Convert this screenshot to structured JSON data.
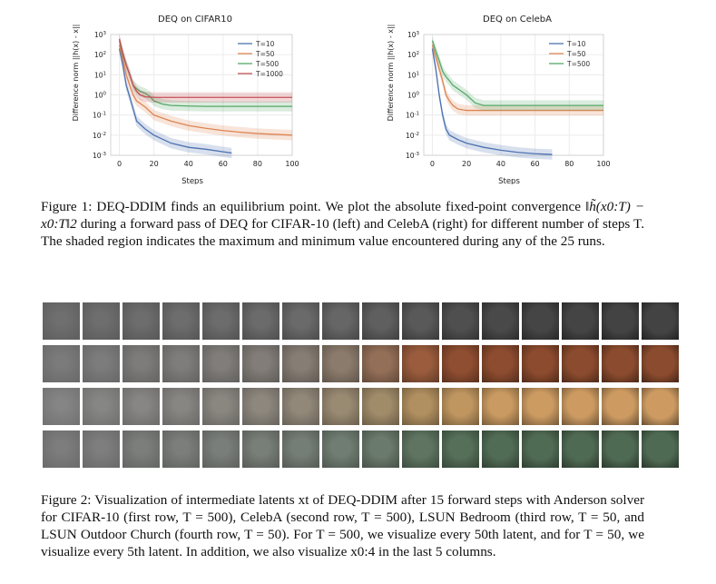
{
  "charts": {
    "left": {
      "title": "DEQ on CIFAR10",
      "xlabel": "Steps",
      "ylabel": "Difference norm ||h(x) - x||",
      "xticks": [
        "0",
        "20",
        "40",
        "60",
        "80",
        "100"
      ],
      "legend": [
        "T=10",
        "T=50",
        "T=500",
        "T=1000"
      ]
    },
    "right": {
      "title": "DEQ on CelebA",
      "xlabel": "Steps",
      "ylabel": "Difference norm ||h(x) - x||",
      "xticks": [
        "0",
        "20",
        "40",
        "60",
        "80",
        "100"
      ],
      "legend": [
        "T=10",
        "T=50",
        "T=500"
      ]
    }
  },
  "chart_data": [
    {
      "type": "line",
      "title": "DEQ on CIFAR10",
      "xlabel": "Steps",
      "ylabel": "Difference norm ||h(x) - x||",
      "yscale": "log",
      "xlim": [
        -5,
        100
      ],
      "ylim": [
        0.001,
        1000
      ],
      "legend_position": "top-right",
      "series": [
        {
          "name": "T=10",
          "color": "#4c72b0",
          "x": [
            0,
            2,
            4,
            6,
            8,
            10,
            15,
            20,
            30,
            40,
            50,
            60,
            65
          ],
          "y": [
            200,
            30,
            3,
            0.8,
            0.2,
            0.05,
            0.02,
            0.01,
            0.004,
            0.0025,
            0.002,
            0.0015,
            0.0013
          ]
        },
        {
          "name": "T=50",
          "color": "#dd8452",
          "x": [
            0,
            2,
            4,
            6,
            8,
            10,
            15,
            20,
            30,
            40,
            50,
            60,
            70,
            80,
            90,
            100
          ],
          "y": [
            300,
            60,
            10,
            3,
            1,
            0.5,
            0.25,
            0.1,
            0.05,
            0.03,
            0.022,
            0.017,
            0.014,
            0.012,
            0.011,
            0.01
          ]
        },
        {
          "name": "T=500",
          "color": "#55a868",
          "x": [
            0,
            2,
            4,
            6,
            8,
            10,
            12,
            15,
            18,
            20,
            25,
            30,
            40,
            50,
            60,
            70,
            80,
            90,
            100
          ],
          "y": [
            500,
            100,
            30,
            10,
            3,
            2,
            1.5,
            1.2,
            0.8,
            0.5,
            0.35,
            0.3,
            0.28,
            0.27,
            0.27,
            0.27,
            0.27,
            0.27,
            0.27
          ]
        },
        {
          "name": "T=1000",
          "color": "#c44e52",
          "x": [
            0,
            2,
            4,
            6,
            8,
            10,
            12,
            15,
            20,
            30,
            40,
            60,
            80,
            100
          ],
          "y": [
            600,
            120,
            30,
            10,
            3,
            1.5,
            1,
            0.8,
            0.75,
            0.75,
            0.75,
            0.75,
            0.75,
            0.75
          ]
        }
      ]
    },
    {
      "type": "line",
      "title": "DEQ on CelebA",
      "xlabel": "Steps",
      "ylabel": "Difference norm ||h(x) - x||",
      "yscale": "log",
      "xlim": [
        -5,
        100
      ],
      "ylim": [
        0.001,
        1000
      ],
      "legend_position": "top-right",
      "series": [
        {
          "name": "T=10",
          "color": "#4c72b0",
          "x": [
            0,
            2,
            4,
            6,
            8,
            10,
            15,
            20,
            30,
            40,
            50,
            60,
            70
          ],
          "y": [
            200,
            20,
            1,
            0.1,
            0.02,
            0.01,
            0.006,
            0.004,
            0.0025,
            0.0018,
            0.0014,
            0.0012,
            0.0011
          ]
        },
        {
          "name": "T=50",
          "color": "#dd8452",
          "x": [
            0,
            2,
            4,
            6,
            8,
            10,
            12,
            15,
            18,
            20,
            30,
            40,
            60,
            80,
            100
          ],
          "y": [
            300,
            80,
            20,
            5,
            1,
            0.5,
            0.3,
            0.2,
            0.18,
            0.17,
            0.17,
            0.17,
            0.17,
            0.17,
            0.17
          ]
        },
        {
          "name": "T=500",
          "color": "#55a868",
          "x": [
            0,
            2,
            4,
            6,
            8,
            10,
            12,
            15,
            20,
            25,
            30,
            40,
            60,
            80,
            100
          ],
          "y": [
            500,
            150,
            50,
            15,
            8,
            5,
            3,
            2,
            1,
            0.4,
            0.3,
            0.3,
            0.3,
            0.3,
            0.3
          ]
        }
      ]
    }
  ],
  "figure1": {
    "lead": "Figure 1: DEQ-DDIM finds an equilibrium point. We plot the absolute fixed-point convergence",
    "formula": "‖h̃(x0:T) − x0:T‖2",
    "rest": "during a forward pass of DEQ for CIFAR-10 (left) and CelebA (right) for different number of steps T. The shaded region indicates the maximum and minimum value encountered during any of the 25 runs."
  },
  "figure2": {
    "text": "Figure 2: Visualization of intermediate latents xt of DEQ-DDIM after 15 forward steps with Anderson solver for CIFAR-10 (first row, T = 500), CelebA (second row, T = 500), LSUN Bedroom (third row, T = 50, and LSUN Outdoor Church (fourth row, T = 50). For T = 500, we visualize every 50th latent, and for T = 50, we visualize every 5th latent. In addition, we also visualize x0:4 in the last 5 columns."
  },
  "image_grid": {
    "rows": [
      {
        "name": "cifar10-cat",
        "colors": [
          "#6f6f6f",
          "#6e6e6e",
          "#6d6d6d",
          "#6d6d6d",
          "#6c6c6c",
          "#6b6b6b",
          "#6a6a6a",
          "#666666",
          "#5f5f5f",
          "#595959",
          "#4f4f4f",
          "#494949",
          "#454545",
          "#444444",
          "#434343",
          "#434343"
        ]
      },
      {
        "name": "celeba-face",
        "colors": [
          "#7b7b7b",
          "#7c7c7c",
          "#7d7c7b",
          "#7e7d7b",
          "#807d7a",
          "#827d78",
          "#867d74",
          "#8b7b6c",
          "#946f58",
          "#9a5c3d",
          "#8f4e31",
          "#8d4c2f",
          "#8c4b2e",
          "#8b4b2e",
          "#8b4b2e",
          "#8b4b2e"
        ]
      },
      {
        "name": "lsun-bedroom",
        "colors": [
          "#858585",
          "#868685",
          "#878684",
          "#888683",
          "#8a8781",
          "#8d877e",
          "#918879",
          "#998a72",
          "#a18c6a",
          "#b08f60",
          "#c09660",
          "#c99a61",
          "#cc9b62",
          "#cd9b62",
          "#cd9b62",
          "#cd9b62"
        ]
      },
      {
        "name": "lsun-church",
        "colors": [
          "#7d7d7d",
          "#7d7e7d",
          "#7c7e7c",
          "#7b7e7b",
          "#7a7e7a",
          "#787e78",
          "#757e76",
          "#707d72",
          "#6a7a6c",
          "#5f7562",
          "#556f58",
          "#516c55",
          "#506b54",
          "#4f6a53",
          "#4f6a53",
          "#4f6a53"
        ]
      }
    ]
  }
}
